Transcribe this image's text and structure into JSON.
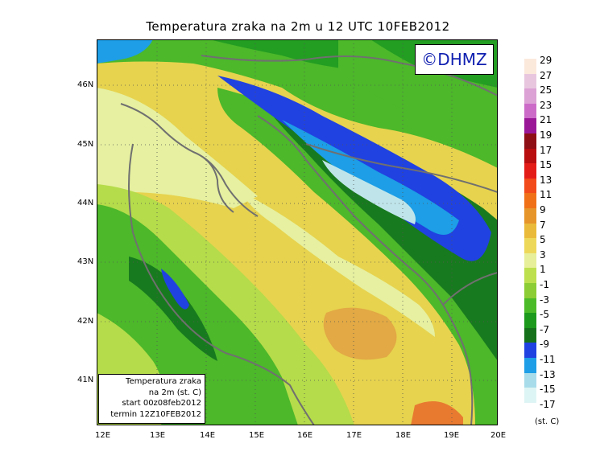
{
  "title": "Temperatura zraka na 2m u 12 UTC 10FEB2012",
  "copyright": "©DHMZ",
  "info": {
    "line1": "Temperatura zraka",
    "line2": "na 2m (st. C)",
    "line3": "start 00z08feb2012",
    "line4": "termin 12Z10FEB2012"
  },
  "x_ticks": [
    "12E",
    "13E",
    "14E",
    "15E",
    "16E",
    "17E",
    "18E",
    "19E",
    "20E"
  ],
  "y_ticks": [
    "46N",
    "45N",
    "44N",
    "43N",
    "42N",
    "41N"
  ],
  "legend": {
    "labels": [
      "29",
      "27",
      "25",
      "23",
      "21",
      "19",
      "17",
      "15",
      "13",
      "11",
      "9",
      "7",
      "5",
      "3",
      "1",
      "-1",
      "-3",
      "-5",
      "-7",
      "-9",
      "-11",
      "-13",
      "-15",
      "-17"
    ],
    "colors": [
      "#fbe9dc",
      "#e8c7de",
      "#dca1d5",
      "#cc6cc8",
      "#9a1898",
      "#8e0f16",
      "#b80e10",
      "#e41c18",
      "#f24a1a",
      "#f07018",
      "#e6952a",
      "#eabb3a",
      "#eed85a",
      "#e7ef9a",
      "#bde04e",
      "#8ccc34",
      "#4cbb28",
      "#1c9a1c",
      "#15711a",
      "#2042e0",
      "#1d9ee6",
      "#a8dcea",
      "#def5f5"
    ],
    "units": "(st. C)"
  },
  "map_colors": {
    "sea": "#e7d34e",
    "sea_warm": "#e2a944",
    "hot": "#e87a30",
    "coast_light": "#e6f0a0",
    "green_light": "#b5dc4a",
    "green": "#4cb82a",
    "green_dark": "#239d22",
    "green_darker": "#187a1e",
    "blue": "#2042e0",
    "cyan": "#1d9ee6",
    "pale": "#bfe5ea",
    "border": "#707070"
  }
}
